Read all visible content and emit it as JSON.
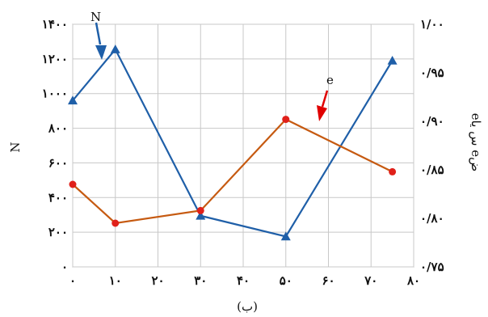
{
  "chart_data": {
    "type": "line",
    "x_ticks": [
      "۰",
      "۱۰",
      "۲۰",
      "۳۰",
      "۴۰",
      "۵۰",
      "۶۰",
      "۷۰",
      "۸۰"
    ],
    "x_tick_values": [
      0,
      10,
      20,
      30,
      40,
      50,
      60,
      70,
      80
    ],
    "xlim": [
      0,
      80
    ],
    "y_left_ticks": [
      "۰",
      "۲۰۰",
      "۴۰۰",
      "۶۰۰",
      "۸۰۰",
      "۱۰۰۰",
      "۱۲۰۰",
      "۱۴۰۰"
    ],
    "y_left_tick_values": [
      0,
      200,
      400,
      600,
      800,
      1000,
      1200,
      1400
    ],
    "ylim_left": [
      0,
      1400
    ],
    "y_right_ticks": [
      "۰/۷۵",
      "۰/۸۰",
      "۰/۸۵",
      "۰/۹۰",
      "۰/۹۵",
      "۱/۰۰"
    ],
    "y_right_tick_values": [
      0.75,
      0.8,
      0.85,
      0.9,
      0.95,
      1.0
    ],
    "ylim_right": [
      0.75,
      1.0
    ],
    "ylabel_left": "N",
    "ylabel_right": "eس⁣ یا eض",
    "xlabel": "(ب)",
    "grid": true,
    "series": [
      {
        "name": "N",
        "axis": "left",
        "color": "#1f5fa8",
        "marker": "triangle",
        "x": [
          0,
          10,
          30,
          50,
          75
        ],
        "y": [
          960,
          1255,
          295,
          175,
          1190
        ]
      },
      {
        "name": "e",
        "axis": "right",
        "color": "#c65a11",
        "marker": "circle",
        "x": [
          0,
          10,
          30,
          50,
          75
        ],
        "y": [
          0.835,
          0.795,
          0.808,
          0.902,
          0.848
        ]
      }
    ],
    "annotations": [
      {
        "text": "N",
        "color": "#1f5fa8"
      },
      {
        "text": "e",
        "color": "#e00000"
      }
    ]
  }
}
